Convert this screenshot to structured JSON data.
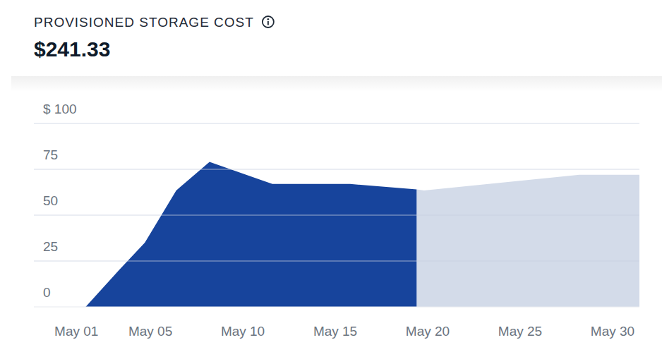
{
  "chart_data": {
    "type": "area",
    "title": "PROVISIONED STORAGE COST",
    "subtitle": "$241.33",
    "x": [
      1.5,
      3.3,
      4.7,
      6.4,
      8.2,
      11.6,
      15.8,
      19.4,
      19.8,
      28.2,
      31.45
    ],
    "series": [
      {
        "color": "#17449c",
        "values": [
          0,
          20,
          35,
          63.5,
          79,
          67,
          67,
          64,
          null,
          null,
          null
        ]
      },
      {
        "color": "#d3dbe9",
        "values": [
          null,
          null,
          null,
          null,
          null,
          null,
          null,
          64,
          63.5,
          72,
          72
        ]
      }
    ],
    "xlim": [
      -1.3,
      31.45
    ],
    "xticks": [
      {
        "value": 1,
        "label": "May 01"
      },
      {
        "value": 5,
        "label": "May 05"
      },
      {
        "value": 10,
        "label": "May 10"
      },
      {
        "value": 15,
        "label": "May 15"
      },
      {
        "value": 20,
        "label": "May 20"
      },
      {
        "value": 25,
        "label": "May 25"
      },
      {
        "value": 30,
        "label": "May 30"
      }
    ],
    "ylim": [
      0,
      100
    ],
    "yticks": [
      0,
      25,
      50,
      75,
      {
        "value": 100,
        "label": "$ 100"
      }
    ],
    "grid": true
  }
}
